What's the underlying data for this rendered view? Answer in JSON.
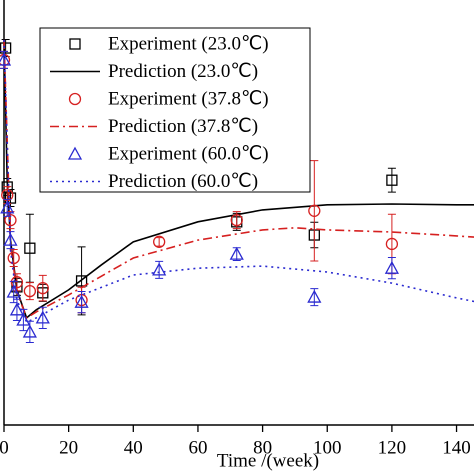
{
  "chart_data": {
    "type": "line",
    "x_label": "Time /(week)",
    "xlim": [
      0,
      145.4
    ],
    "xticks": [
      0,
      20,
      40,
      60,
      80,
      100,
      120,
      140
    ],
    "ylim": [
      0,
      10
    ],
    "series": [
      {
        "name": "Experiment (23.0℃)",
        "kind": "scatter",
        "marker": "square",
        "color": "#000000",
        "x": [
          0.5,
          1,
          2,
          4,
          8,
          12,
          24,
          72,
          96,
          120
        ],
        "values": [
          8.87,
          5.6,
          5.34,
          3.25,
          4.16,
          3.11,
          3.39,
          4.78,
          4.47,
          5.76
        ],
        "errors": [
          0.2,
          0.2,
          0.2,
          0.2,
          0.8,
          0.2,
          0.8,
          0.2,
          0.3,
          0.28
        ]
      },
      {
        "name": "Prediction (23.0℃)",
        "kind": "line",
        "dash": "solid",
        "color": "#000000",
        "x": [
          0,
          1,
          2,
          4,
          7,
          10,
          20,
          30,
          40,
          60,
          80,
          100,
          120,
          140,
          146
        ],
        "values": [
          9.06,
          5.76,
          4.35,
          3.18,
          2.52,
          2.71,
          3.18,
          3.76,
          4.31,
          4.78,
          5.06,
          5.18,
          5.2,
          5.18,
          5.18
        ]
      },
      {
        "name": "Experiment (37.8℃)",
        "kind": "scatter",
        "marker": "circle",
        "color": "#d62020",
        "x": [
          0,
          1,
          2,
          3,
          4,
          8,
          12,
          24,
          48,
          72,
          96,
          120
        ],
        "values": [
          8.59,
          5.41,
          4.82,
          3.93,
          3.36,
          3.15,
          3.22,
          2.94,
          4.31,
          4.82,
          5.04,
          4.26
        ],
        "errors": [
          0.2,
          0.2,
          0.2,
          0.2,
          0.2,
          0.2,
          0.3,
          0.3,
          0.1,
          0.2,
          1.18,
          0.7
        ]
      },
      {
        "name": "Prediction (37.8℃)",
        "kind": "line",
        "dash": "dashdot",
        "color": "#d62020",
        "x": [
          0,
          2,
          4,
          7,
          10,
          20,
          40,
          60,
          80,
          90,
          100,
          120,
          140,
          146
        ],
        "values": [
          9.06,
          4.24,
          3.13,
          2.52,
          2.66,
          3.06,
          3.93,
          4.35,
          4.59,
          4.64,
          4.59,
          4.54,
          4.45,
          4.42
        ]
      },
      {
        "name": "Experiment (60.0℃)",
        "kind": "scatter",
        "marker": "triangle",
        "color": "#2a2ad0",
        "x": [
          0,
          1,
          2,
          3,
          4,
          6,
          8,
          12,
          24,
          48,
          72,
          96,
          120
        ],
        "values": [
          8.59,
          5.11,
          4.35,
          3.13,
          2.71,
          2.47,
          2.19,
          2.52,
          2.89,
          3.65,
          4.02,
          3.01,
          3.69
        ],
        "errors": [
          0.2,
          0.2,
          0.2,
          0.25,
          0.25,
          0.25,
          0.25,
          0.25,
          0.25,
          0.2,
          0.15,
          0.2,
          0.25
        ]
      },
      {
        "name": "Prediction (60.0℃)",
        "kind": "line",
        "dash": "dotted",
        "color": "#2a2ad0",
        "x": [
          0,
          2,
          4,
          7,
          10,
          20,
          40,
          60,
          80,
          100,
          120,
          140,
          146
        ],
        "values": [
          9.06,
          4.12,
          2.94,
          2.42,
          2.52,
          2.94,
          3.53,
          3.69,
          3.74,
          3.6,
          3.34,
          2.99,
          2.9
        ]
      }
    ]
  }
}
